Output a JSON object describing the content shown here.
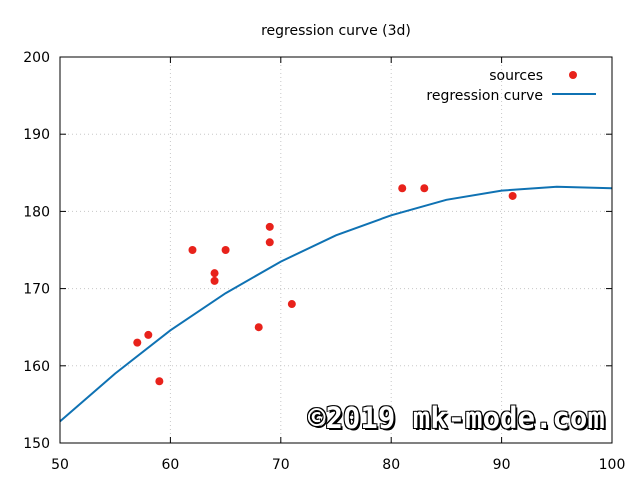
{
  "chart_data": {
    "type": "scatter",
    "title": "regression curve (3d)",
    "xlabel": "",
    "ylabel": "",
    "xlim": [
      50,
      100
    ],
    "ylim": [
      150,
      200
    ],
    "xticks": [
      50,
      60,
      70,
      80,
      90,
      100
    ],
    "yticks": [
      150,
      160,
      170,
      180,
      190,
      200
    ],
    "grid": true,
    "legend_position": "top-right",
    "series": [
      {
        "name": "sources",
        "type": "scatter",
        "color": "#e8221b",
        "points": [
          [
            57,
            163
          ],
          [
            58,
            164
          ],
          [
            59,
            158
          ],
          [
            62,
            175
          ],
          [
            64,
            172
          ],
          [
            64,
            171
          ],
          [
            65,
            175
          ],
          [
            68,
            165
          ],
          [
            69,
            178
          ],
          [
            69,
            176
          ],
          [
            71,
            168
          ],
          [
            81,
            183
          ],
          [
            83,
            183
          ],
          [
            91,
            182
          ]
        ]
      },
      {
        "name": "regression curve",
        "type": "line",
        "color": "#0f72b3",
        "points": [
          [
            50,
            152.8
          ],
          [
            55,
            159.0
          ],
          [
            60,
            164.6
          ],
          [
            65,
            169.4
          ],
          [
            70,
            173.5
          ],
          [
            75,
            176.9
          ],
          [
            80,
            179.5
          ],
          [
            85,
            181.5
          ],
          [
            90,
            182.7
          ],
          [
            95,
            183.2
          ],
          [
            100,
            183.0
          ]
        ]
      }
    ]
  },
  "watermark": "©2019 mk-mode.com"
}
